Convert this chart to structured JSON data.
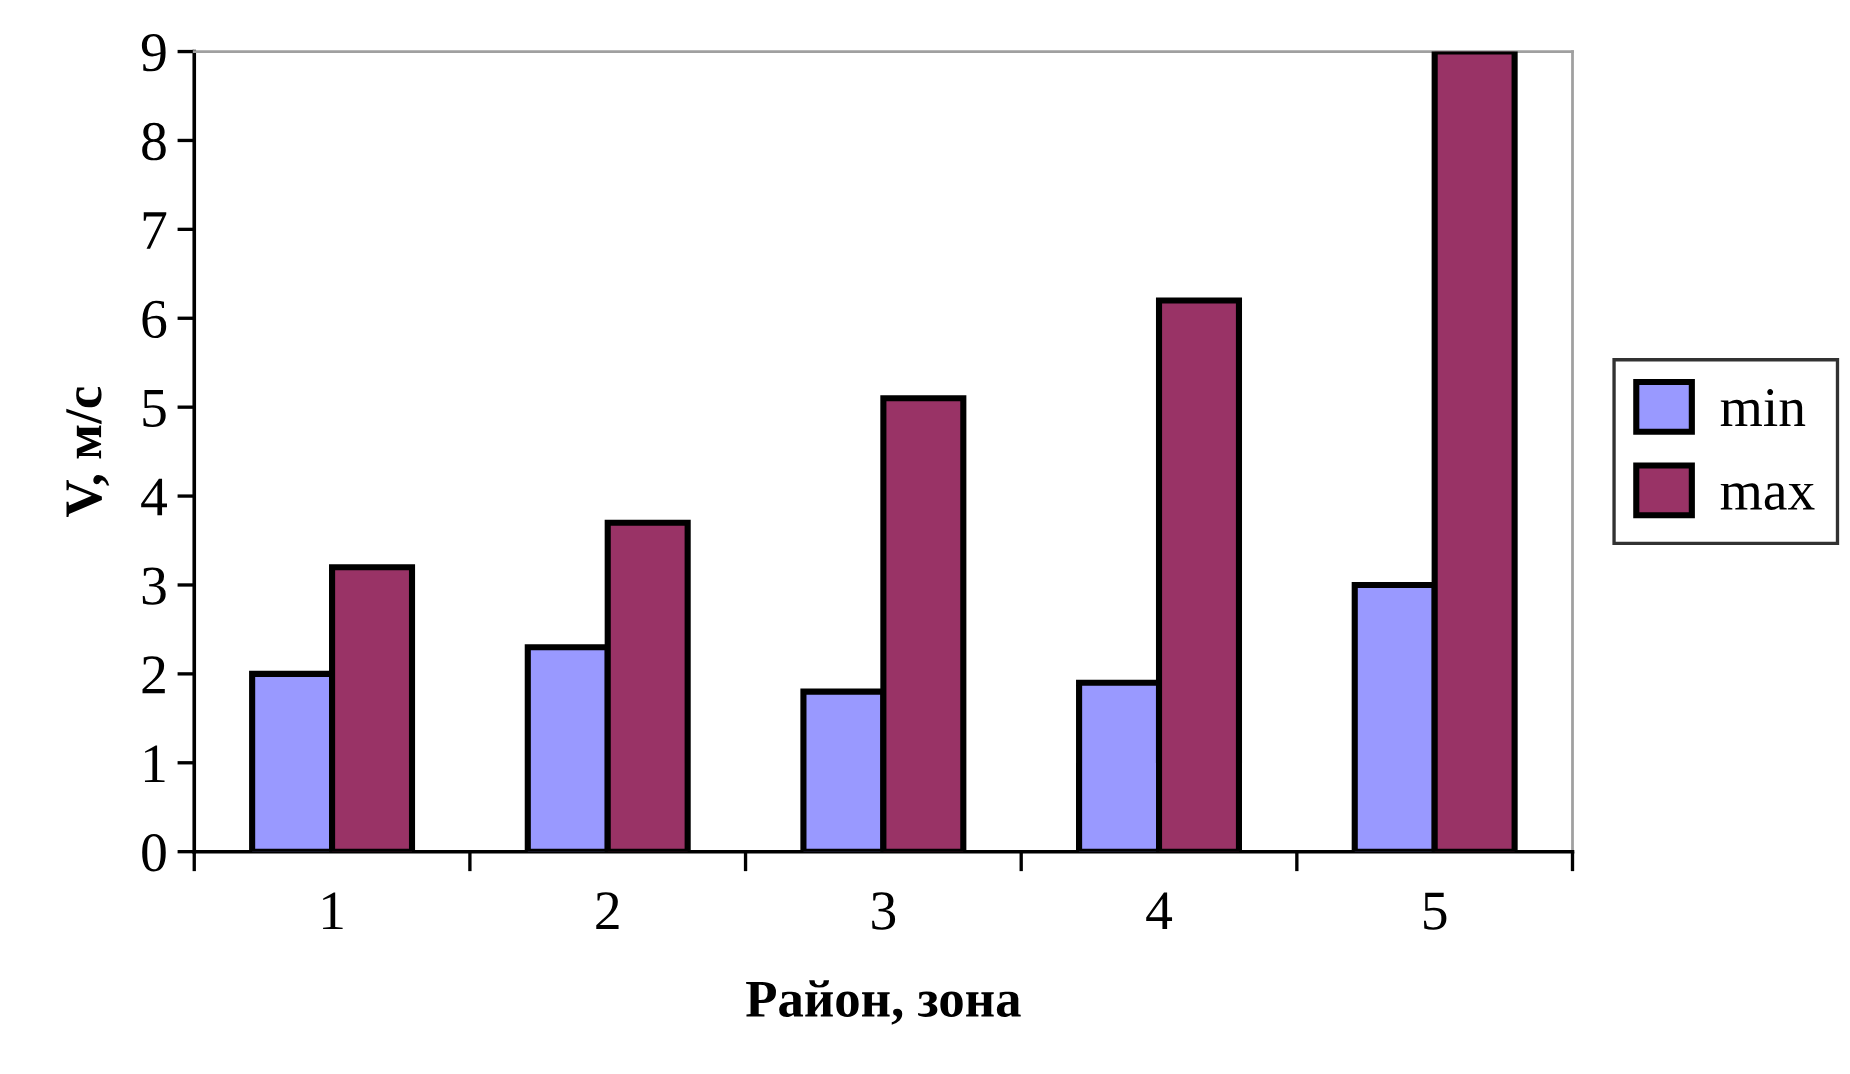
{
  "chart_data": {
    "type": "bar",
    "xlabel": "Район, зона",
    "ylabel": "V, м/с",
    "categories": [
      "1",
      "2",
      "3",
      "4",
      "5"
    ],
    "series": [
      {
        "name": "min",
        "color": "#9999ff",
        "values": [
          2.0,
          2.3,
          1.8,
          1.9,
          3.0
        ]
      },
      {
        "name": "max",
        "color": "#993366",
        "values": [
          3.2,
          3.7,
          5.1,
          6.2,
          9.0
        ]
      }
    ],
    "ylim": [
      0,
      9
    ],
    "yticks": [
      0,
      1,
      2,
      3,
      4,
      5,
      6,
      7,
      8,
      9
    ],
    "grid": false,
    "legend": "right"
  }
}
